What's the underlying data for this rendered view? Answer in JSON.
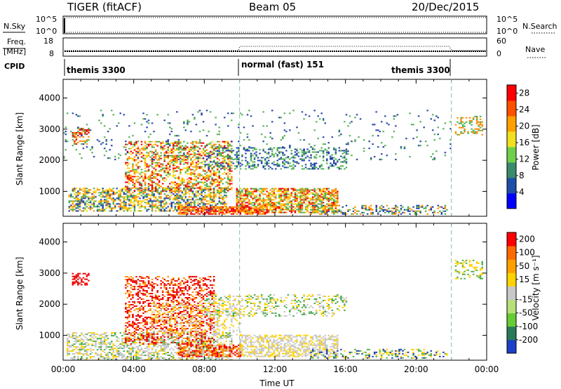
{
  "header": {
    "title": "TIGER (fitACF)",
    "beam": "Beam 05",
    "date": "20/Dec/2015"
  },
  "nsky_panel": {
    "left_label": "N.Sky",
    "left_ticks": [
      "10^5",
      "10^0"
    ],
    "right_ticks": [
      "10^5",
      "10^0"
    ],
    "right_label": "N.Search"
  },
  "freq_panel": {
    "left_label_1": "Freq.",
    "left_label_2": "[MHz]",
    "left_ticks": [
      "18",
      "8"
    ],
    "right_ticks": [
      "60",
      "0"
    ],
    "right_label": "Nave"
  },
  "cpid": {
    "label": "CPID",
    "segments": [
      "themis 3300",
      "normal (fast) 151",
      "themis 3300"
    ]
  },
  "colors": {
    "scatter_red": "#ee0000",
    "scatter_orange": "#ff8c00",
    "scatter_yellow": "#ffd200",
    "scatter_green": "#4caf50",
    "scatter_blue": "#1f3fa6",
    "ground_gray": "#c8c8c8"
  },
  "chart_data": [
    {
      "type": "heatmap",
      "title": "",
      "xlabel": "",
      "ylabel": "Slant Range [km]",
      "x_range_hours": [
        0,
        24
      ],
      "ylim": [
        200,
        4600
      ],
      "yticks": [
        "1000",
        "2000",
        "3000",
        "4000"
      ],
      "colorbar": {
        "label": "Power [dB]",
        "range": [
          0,
          30
        ],
        "ticks": [
          "4",
          "8",
          "12",
          "16",
          "20",
          "24",
          "28"
        ],
        "colors": [
          "#0000ff",
          "#1e4fa8",
          "#3a8a6c",
          "#6fcf4a",
          "#f0e020",
          "#ffa000",
          "#ff5000",
          "#ff0000"
        ]
      },
      "cpid_boundaries_hours": [
        10.0,
        22.0
      ]
    },
    {
      "type": "heatmap",
      "title": "",
      "xlabel": "Time UT",
      "ylabel": "Slant Range [km]",
      "x_range_hours": [
        0,
        24
      ],
      "ylim": [
        200,
        4600
      ],
      "yticks": [
        "1000",
        "2000",
        "3000",
        "4000"
      ],
      "xticks": [
        "00:00",
        "04:00",
        "08:00",
        "12:00",
        "16:00",
        "20:00",
        "00:00"
      ],
      "colorbar": {
        "label": "Velocity [m s⁻¹]",
        "range": [
          -250,
          250
        ],
        "ticks": [
          "200",
          "100",
          "50",
          "15",
          "-15",
          "-50",
          "-100",
          "-200"
        ],
        "colors": [
          "#1a3fc8",
          "#2a7a5a",
          "#66cc33",
          "#b8e07a",
          "#c8c8c8",
          "#ffd200",
          "#ffa000",
          "#ff6a00",
          "#ff0000"
        ]
      },
      "cpid_boundaries_hours": [
        10.0,
        22.0
      ]
    }
  ]
}
